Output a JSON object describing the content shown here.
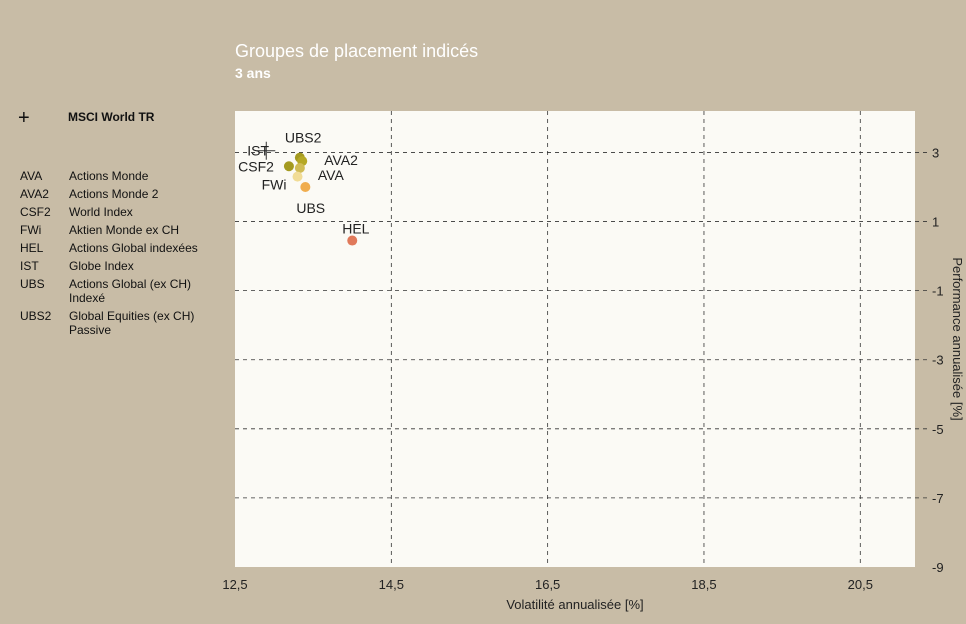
{
  "header": {
    "title": "Groupes de placement indicés",
    "subtitle": "3 ans"
  },
  "legend": {
    "benchmark_label": "MSCI World TR",
    "items": [
      {
        "code": "AVA",
        "description": "Actions Monde"
      },
      {
        "code": "AVA2",
        "description": "Actions Monde 2"
      },
      {
        "code": "CSF2",
        "description": "World Index"
      },
      {
        "code": "FWi",
        "description": "Aktien Monde ex CH"
      },
      {
        "code": "HEL",
        "description": "Actions Global indexées"
      },
      {
        "code": "IST",
        "description": "Globe Index"
      },
      {
        "code": "UBS",
        "description": "Actions Global (ex CH) Indexé"
      },
      {
        "code": "UBS2",
        "description": "Global Equities (ex CH) Passive"
      }
    ]
  },
  "chart_data": {
    "type": "scatter",
    "xlabel": "Volatilité annualisée [%]",
    "ylabel": "Performance annualisée [%]",
    "xlim": [
      12.5,
      21.2
    ],
    "ylim": [
      -9,
      4.2
    ],
    "x_ticks": [
      12.5,
      14.5,
      16.5,
      18.5,
      20.5
    ],
    "x_tick_labels": [
      "12,5",
      "14,5",
      "16,5",
      "18,5",
      "20,5"
    ],
    "y_ticks": [
      3,
      1,
      -1,
      -3,
      -5,
      -7,
      -9
    ],
    "y_tick_labels": [
      "3",
      "1",
      "-1",
      "-3",
      "-5",
      "-7",
      "-9"
    ],
    "grid": true,
    "benchmark": {
      "name": "MSCI World TR",
      "x": 12.9,
      "y": 3.05
    },
    "points": [
      {
        "label": "IST",
        "x": 13.0,
        "y": 3.0,
        "color": "#c8bca6"
      },
      {
        "label": "UBS2",
        "x": 13.33,
        "y": 2.85,
        "color": "#a49a20"
      },
      {
        "label": "AVA2",
        "x": 13.36,
        "y": 2.75,
        "color": "#b5a825"
      },
      {
        "label": "CSF2",
        "x": 13.19,
        "y": 2.6,
        "color": "#a49a20"
      },
      {
        "label": "AVA",
        "x": 13.33,
        "y": 2.55,
        "color": "#d0bc55"
      },
      {
        "label": "FWi",
        "x": 13.3,
        "y": 2.3,
        "color": "#f1dc96"
      },
      {
        "label": "UBS",
        "x": 13.4,
        "y": 2.0,
        "color": "#f0ad4e"
      },
      {
        "label": "HEL",
        "x": 14.0,
        "y": 0.45,
        "color": "#e0795a"
      }
    ]
  },
  "colors": {
    "background": "#c8bca6",
    "plot_area": "#fbfaf5",
    "grid": "#333333"
  }
}
